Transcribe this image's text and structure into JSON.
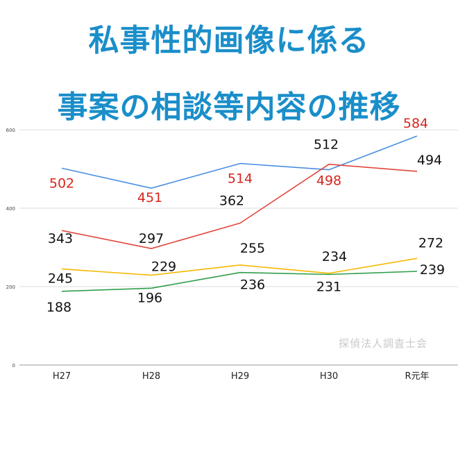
{
  "title": {
    "line1": "私事性的画像に係る",
    "line2": "事案の相談等内容の推移"
  },
  "watermark": "探偵法人調査士会",
  "colors": {
    "title": "#1a8ec9",
    "blue_series": "#4a8fe0",
    "red_series": "#e0463c",
    "yellow_series": "#f5b800",
    "green_series": "#2f9e4a",
    "red_label": "#d7261e",
    "black_label": "#111111",
    "grid": "#dcdcdc"
  },
  "chart_data": {
    "type": "line",
    "categories": [
      "H27",
      "H28",
      "H29",
      "H30",
      "R元年"
    ],
    "ylim": [
      0,
      600
    ],
    "yticks": [
      0,
      200,
      400,
      600
    ],
    "grid": true,
    "series": [
      {
        "color_key": "blue_series",
        "values": [
          502,
          451,
          514,
          498,
          584
        ]
      },
      {
        "color_key": "red_series",
        "values": [
          343,
          297,
          362,
          512,
          494
        ]
      },
      {
        "color_key": "yellow_series",
        "values": [
          245,
          229,
          255,
          234,
          272
        ]
      },
      {
        "color_key": "green_series",
        "values": [
          188,
          196,
          236,
          231,
          239
        ]
      }
    ],
    "data_labels": [
      {
        "text": "502",
        "value": 502,
        "color_key": "red_label"
      },
      {
        "text": "451",
        "value": 451,
        "color_key": "red_label"
      },
      {
        "text": "514",
        "value": 514,
        "color_key": "red_label"
      },
      {
        "text": "498",
        "value": 498,
        "color_key": "red_label"
      },
      {
        "text": "584",
        "value": 584,
        "color_key": "red_label"
      },
      {
        "text": "343",
        "value": 343,
        "color_key": "black_label"
      },
      {
        "text": "297",
        "value": 297,
        "color_key": "black_label"
      },
      {
        "text": "362",
        "value": 362,
        "color_key": "black_label"
      },
      {
        "text": "512",
        "value": 512,
        "color_key": "black_label"
      },
      {
        "text": "494",
        "value": 494,
        "color_key": "black_label"
      },
      {
        "text": "245",
        "value": 245,
        "color_key": "black_label"
      },
      {
        "text": "229",
        "value": 229,
        "color_key": "black_label"
      },
      {
        "text": "255",
        "value": 255,
        "color_key": "black_label"
      },
      {
        "text": "234",
        "value": 234,
        "color_key": "black_label"
      },
      {
        "text": "272",
        "value": 272,
        "color_key": "black_label"
      },
      {
        "text": "188",
        "value": 188,
        "color_key": "black_label"
      },
      {
        "text": "196",
        "value": 196,
        "color_key": "black_label"
      },
      {
        "text": "236",
        "value": 236,
        "color_key": "black_label"
      },
      {
        "text": "231",
        "value": 231,
        "color_key": "black_label"
      },
      {
        "text": "239",
        "value": 239,
        "color_key": "black_label"
      }
    ]
  }
}
